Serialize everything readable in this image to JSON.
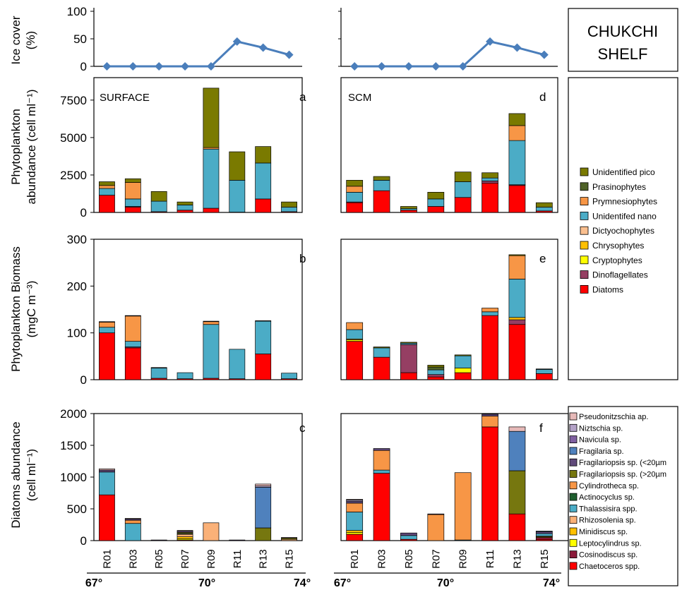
{
  "region_label": [
    "CHUKCHI",
    "SHELF"
  ],
  "stations": [
    "R01",
    "R03",
    "R05",
    "R07",
    "R09",
    "R11",
    "R13",
    "R15"
  ],
  "latitude_labels": [
    "67°",
    "70°",
    "74°"
  ],
  "colors": {
    "ice_line": "#4a7ebb",
    "Unidentified pico": "#7a7a00",
    "Prasinophytes": "#4f6228",
    "Prymnesiophytes": "#f79646",
    "Unidentifed nano": "#4bacc6",
    "Dictyochophytes": "#fabf8f",
    "Chrysophytes": "#ffc000",
    "Cryptophytes": "#ffff00",
    "Dinoflagellates": "#953f63",
    "Diatoms": "#ff0000",
    "Pseudonitzschia ap.": "#e6b9b8",
    "Niztschia sp.": "#b3a2c7",
    "Navicula sp.": "#7f5fa0",
    "Fragilaria sp.": "#4f81bd",
    "Fragilariopsis sp. (<20µm": "#5f497a",
    "Fragilariopsis sp. (>20µm": "#76770f",
    "Cylindrotheca sp.": "#f79646",
    "Actinocyclus sp.": "#1e5e2e",
    "Thalassisira spp.": "#4bacc6",
    "Rhizosolenia sp.": "#fab178",
    "Minidiscus sp.": "#ffc000",
    "Leptocylindrus sp.": "#ffff00",
    "Cosinodiscus sp.": "#8b1a3a",
    "Chaetoceros spp.": "#ff0000"
  },
  "chart_data": [
    {
      "id": "ice-left",
      "type": "line",
      "ylabel": [
        "Ice cover",
        "(%)"
      ],
      "ylim": [
        0,
        100
      ],
      "yticks": [
        0,
        50,
        100
      ],
      "x": [
        "R01",
        "R03",
        "R05",
        "R07",
        "R09",
        "R11",
        "R13",
        "R15"
      ],
      "series": [
        {
          "name": "",
          "values": [
            0,
            0,
            0,
            0,
            0,
            45,
            34,
            21
          ]
        }
      ]
    },
    {
      "id": "ice-right",
      "type": "line",
      "ylim": [
        0,
        100
      ],
      "x": [
        "R01",
        "R03",
        "R05",
        "R07",
        "R09",
        "R11",
        "R13",
        "R15"
      ],
      "series": [
        {
          "name": "",
          "values": [
            0,
            0,
            0,
            0,
            0,
            45,
            34,
            21
          ]
        }
      ]
    },
    {
      "id": "a",
      "type": "bar",
      "stacked": true,
      "panel_letter": "a",
      "depth_label": "SURFACE",
      "ylabel": [
        "Phytoplankton",
        "abundance (cell ml⁻¹)"
      ],
      "ylim": [
        0,
        9000
      ],
      "yticks": [
        0,
        2500,
        5000,
        7500
      ],
      "categories": [
        "R01",
        "R03",
        "R05",
        "R07",
        "R09",
        "R11",
        "R13",
        "R15"
      ],
      "series": [
        {
          "name": "Diatoms",
          "values": [
            1150,
            350,
            50,
            150,
            280,
            20,
            900,
            50
          ]
        },
        {
          "name": "Dinoflagellates",
          "values": [
            0,
            50,
            0,
            0,
            0,
            0,
            0,
            0
          ]
        },
        {
          "name": "Cryptophytes",
          "values": [
            0,
            0,
            0,
            0,
            0,
            0,
            0,
            0
          ]
        },
        {
          "name": "Chrysophytes",
          "values": [
            0,
            0,
            0,
            0,
            0,
            0,
            0,
            0
          ]
        },
        {
          "name": "Dictyochophytes",
          "values": [
            0,
            0,
            0,
            0,
            0,
            0,
            0,
            0
          ]
        },
        {
          "name": "Unidentifed nano",
          "values": [
            450,
            500,
            700,
            350,
            3950,
            2130,
            2400,
            300
          ]
        },
        {
          "name": "Prymnesiophytes",
          "values": [
            200,
            1100,
            0,
            0,
            100,
            0,
            0,
            0
          ]
        },
        {
          "name": "Prasinophytes",
          "values": [
            0,
            0,
            0,
            0,
            0,
            0,
            0,
            0
          ]
        },
        {
          "name": "Unidentified pico",
          "values": [
            250,
            250,
            650,
            200,
            3970,
            1900,
            1100,
            350
          ]
        }
      ]
    },
    {
      "id": "d",
      "type": "bar",
      "stacked": true,
      "panel_letter": "d",
      "depth_label": "SCM",
      "ylim": [
        0,
        9000
      ],
      "categories": [
        "R01",
        "R03",
        "R05",
        "R07",
        "R09",
        "R11",
        "R13",
        "R15"
      ],
      "series": [
        {
          "name": "Diatoms",
          "values": [
            650,
            1450,
            150,
            400,
            1000,
            1950,
            1800,
            100
          ]
        },
        {
          "name": "Dinoflagellates",
          "values": [
            50,
            0,
            0,
            0,
            0,
            150,
            50,
            0
          ]
        },
        {
          "name": "Cryptophytes",
          "values": [
            0,
            0,
            0,
            0,
            0,
            0,
            0,
            0
          ]
        },
        {
          "name": "Chrysophytes",
          "values": [
            0,
            0,
            0,
            0,
            0,
            0,
            0,
            0
          ]
        },
        {
          "name": "Dictyochophytes",
          "values": [
            0,
            0,
            0,
            0,
            0,
            0,
            0,
            0
          ]
        },
        {
          "name": "Unidentifed nano",
          "values": [
            650,
            700,
            100,
            500,
            1050,
            200,
            2950,
            250
          ]
        },
        {
          "name": "Prymnesiophytes",
          "values": [
            400,
            0,
            0,
            0,
            0,
            0,
            1000,
            0
          ]
        },
        {
          "name": "Prasinophytes",
          "values": [
            0,
            0,
            0,
            0,
            0,
            0,
            0,
            0
          ]
        },
        {
          "name": "Unidentified pico",
          "values": [
            400,
            250,
            150,
            450,
            650,
            350,
            800,
            300
          ]
        }
      ]
    },
    {
      "id": "b",
      "type": "bar",
      "stacked": true,
      "panel_letter": "b",
      "ylabel": [
        "Phytoplankton Biomass",
        "(mgC m⁻³)"
      ],
      "ylim": [
        0,
        300
      ],
      "yticks": [
        0,
        100,
        200,
        300
      ],
      "categories": [
        "R01",
        "R03",
        "R05",
        "R07",
        "R09",
        "R11",
        "R13",
        "R15"
      ],
      "series": [
        {
          "name": "Diatoms",
          "values": [
            100,
            68,
            3,
            2,
            3,
            2,
            55,
            2
          ]
        },
        {
          "name": "Dinoflagellates",
          "values": [
            0,
            2,
            0,
            0,
            0,
            0,
            0,
            0
          ]
        },
        {
          "name": "Cryptophytes",
          "values": [
            0,
            0,
            0,
            0,
            0,
            0,
            0,
            0
          ]
        },
        {
          "name": "Chrysophytes",
          "values": [
            0,
            0,
            0,
            0,
            0,
            0,
            0,
            0
          ]
        },
        {
          "name": "Dictyochophytes",
          "values": [
            0,
            0,
            0,
            0,
            0,
            0,
            0,
            0
          ]
        },
        {
          "name": "Unidentifed nano",
          "values": [
            12,
            12,
            22,
            13,
            115,
            63,
            70,
            12
          ]
        },
        {
          "name": "Prymnesiophytes",
          "values": [
            11,
            54,
            0,
            0,
            6,
            0,
            0,
            0
          ]
        },
        {
          "name": "Prasinophytes",
          "values": [
            0,
            0,
            0,
            0,
            0,
            0,
            0,
            0
          ]
        },
        {
          "name": "Unidentified pico",
          "values": [
            1,
            1,
            1,
            0,
            1,
            0,
            1,
            0
          ]
        }
      ]
    },
    {
      "id": "e",
      "type": "bar",
      "stacked": true,
      "panel_letter": "e",
      "ylim": [
        0,
        300
      ],
      "categories": [
        "R01",
        "R03",
        "R05",
        "R07",
        "R09",
        "R11",
        "R13",
        "R15"
      ],
      "series": [
        {
          "name": "Diatoms",
          "values": [
            82,
            48,
            15,
            6,
            15,
            137,
            118,
            13
          ]
        },
        {
          "name": "Dinoflagellates",
          "values": [
            0,
            0,
            60,
            5,
            0,
            0,
            10,
            0
          ]
        },
        {
          "name": "Cryptophytes",
          "values": [
            3,
            0,
            0,
            0,
            10,
            0,
            0,
            0
          ]
        },
        {
          "name": "Chrysophytes",
          "values": [
            2,
            0,
            0,
            0,
            0,
            0,
            5,
            0
          ]
        },
        {
          "name": "Dictyochophytes",
          "values": [
            0,
            0,
            0,
            0,
            0,
            0,
            0,
            0
          ]
        },
        {
          "name": "Unidentifed nano",
          "values": [
            20,
            20,
            3,
            10,
            26,
            8,
            82,
            9
          ]
        },
        {
          "name": "Prymnesiophytes",
          "values": [
            15,
            0,
            0,
            0,
            0,
            8,
            50,
            0
          ]
        },
        {
          "name": "Prasinophytes",
          "values": [
            0,
            0,
            0,
            6,
            0,
            0,
            0,
            0
          ]
        },
        {
          "name": "Unidentified pico",
          "values": [
            0,
            2,
            2,
            4,
            2,
            0,
            2,
            1
          ]
        }
      ]
    },
    {
      "id": "c",
      "type": "bar",
      "stacked": true,
      "panel_letter": "c",
      "ylabel": [
        "Diatoms abundance",
        "(cell ml⁻¹)"
      ],
      "ylim": [
        0,
        2000
      ],
      "yticks": [
        0,
        500,
        1000,
        1500,
        2000
      ],
      "categories": [
        "R01",
        "R03",
        "R05",
        "R07",
        "R09",
        "R11",
        "R13",
        "R15"
      ],
      "series": [
        {
          "name": "Chaetoceros spp.",
          "values": [
            720,
            0,
            0,
            10,
            0,
            0,
            0,
            0
          ]
        },
        {
          "name": "Cosinodiscus sp.",
          "values": [
            0,
            0,
            0,
            0,
            0,
            0,
            0,
            0
          ]
        },
        {
          "name": "Leptocylindrus sp.",
          "values": [
            0,
            0,
            0,
            20,
            0,
            0,
            0,
            0
          ]
        },
        {
          "name": "Minidiscus sp.",
          "values": [
            0,
            0,
            0,
            30,
            0,
            0,
            0,
            0
          ]
        },
        {
          "name": "Rhizosolenia sp.",
          "values": [
            0,
            0,
            0,
            40,
            280,
            0,
            0,
            20
          ]
        },
        {
          "name": "Thalassisira spp.",
          "values": [
            360,
            270,
            0,
            10,
            0,
            0,
            0,
            0
          ]
        },
        {
          "name": "Actinocyclus sp.",
          "values": [
            0,
            0,
            0,
            0,
            0,
            0,
            0,
            0
          ]
        },
        {
          "name": "Cylindrotheca sp.",
          "values": [
            0,
            50,
            0,
            0,
            0,
            0,
            0,
            0
          ]
        },
        {
          "name": "Fragilariopsis sp. (>20µm",
          "values": [
            0,
            0,
            0,
            20,
            0,
            0,
            200,
            20
          ]
        },
        {
          "name": "Fragilariopsis sp. (<20µm",
          "values": [
            30,
            20,
            10,
            20,
            0,
            10,
            0,
            0
          ]
        },
        {
          "name": "Fragilaria sp.",
          "values": [
            0,
            0,
            0,
            0,
            0,
            0,
            640,
            0
          ]
        },
        {
          "name": "Navicula sp.",
          "values": [
            0,
            0,
            0,
            0,
            0,
            0,
            0,
            0
          ]
        },
        {
          "name": "Niztschia sp.",
          "values": [
            0,
            0,
            0,
            0,
            0,
            0,
            20,
            0
          ]
        },
        {
          "name": "Pseudonitzschia ap.",
          "values": [
            20,
            10,
            0,
            10,
            0,
            0,
            30,
            10
          ]
        }
      ]
    },
    {
      "id": "f",
      "type": "bar",
      "stacked": true,
      "panel_letter": "f",
      "ylim": [
        0,
        2000
      ],
      "categories": [
        "R01",
        "R03",
        "R05",
        "R07",
        "R09",
        "R11",
        "R13",
        "R15"
      ],
      "series": [
        {
          "name": "Chaetoceros spp.",
          "values": [
            100,
            1060,
            20,
            0,
            0,
            1790,
            420,
            20
          ]
        },
        {
          "name": "Cosinodiscus sp.",
          "values": [
            0,
            0,
            0,
            0,
            0,
            0,
            0,
            30
          ]
        },
        {
          "name": "Leptocylindrus sp.",
          "values": [
            30,
            0,
            0,
            0,
            0,
            0,
            0,
            10
          ]
        },
        {
          "name": "Minidiscus sp.",
          "values": [
            30,
            0,
            0,
            0,
            0,
            0,
            0,
            10
          ]
        },
        {
          "name": "Rhizosolenia sp.",
          "values": [
            0,
            0,
            0,
            0,
            0,
            0,
            0,
            0
          ]
        },
        {
          "name": "Thalassisira spp.",
          "values": [
            290,
            50,
            60,
            0,
            10,
            0,
            0,
            40
          ]
        },
        {
          "name": "Actinocyclus sp.",
          "values": [
            0,
            0,
            0,
            0,
            0,
            0,
            0,
            0
          ]
        },
        {
          "name": "Cylindrotheca sp.",
          "values": [
            140,
            310,
            0,
            410,
            1060,
            170,
            0,
            0
          ]
        },
        {
          "name": "Fragilariopsis sp. (>20µm",
          "values": [
            0,
            0,
            0,
            0,
            0,
            0,
            680,
            0
          ]
        },
        {
          "name": "Fragilariopsis sp. (<20µm",
          "values": [
            30,
            30,
            40,
            10,
            0,
            30,
            0,
            30
          ]
        },
        {
          "name": "Fragilaria sp.",
          "values": [
            0,
            0,
            0,
            0,
            0,
            0,
            620,
            10
          ]
        },
        {
          "name": "Navicula sp.",
          "values": [
            0,
            0,
            0,
            0,
            0,
            0,
            0,
            0
          ]
        },
        {
          "name": "Niztschia sp.",
          "values": [
            20,
            0,
            0,
            0,
            0,
            0,
            0,
            0
          ]
        },
        {
          "name": "Pseudonitzschia ap.",
          "values": [
            10,
            0,
            0,
            0,
            0,
            0,
            70,
            0
          ]
        }
      ]
    }
  ],
  "legend_phyto": [
    "Unidentified pico",
    "Prasinophytes",
    "Prymnesiophytes",
    "Unidentifed nano",
    "Dictyochophytes",
    "Chrysophytes",
    "Cryptophytes",
    "Dinoflagellates",
    "Diatoms"
  ],
  "legend_diatoms": [
    "Pseudonitzschia ap.",
    "Niztschia sp.",
    "Navicula sp.",
    "Fragilaria sp.",
    "Fragilariopsis sp. (<20µm",
    "Fragilariopsis sp. (>20µm",
    "Cylindrotheca sp.",
    "Actinocyclus sp.",
    "Thalassisira spp.",
    "Rhizosolenia sp.",
    "Minidiscus sp.",
    "Leptocylindrus sp.",
    "Cosinodiscus sp.",
    "Chaetoceros spp."
  ]
}
